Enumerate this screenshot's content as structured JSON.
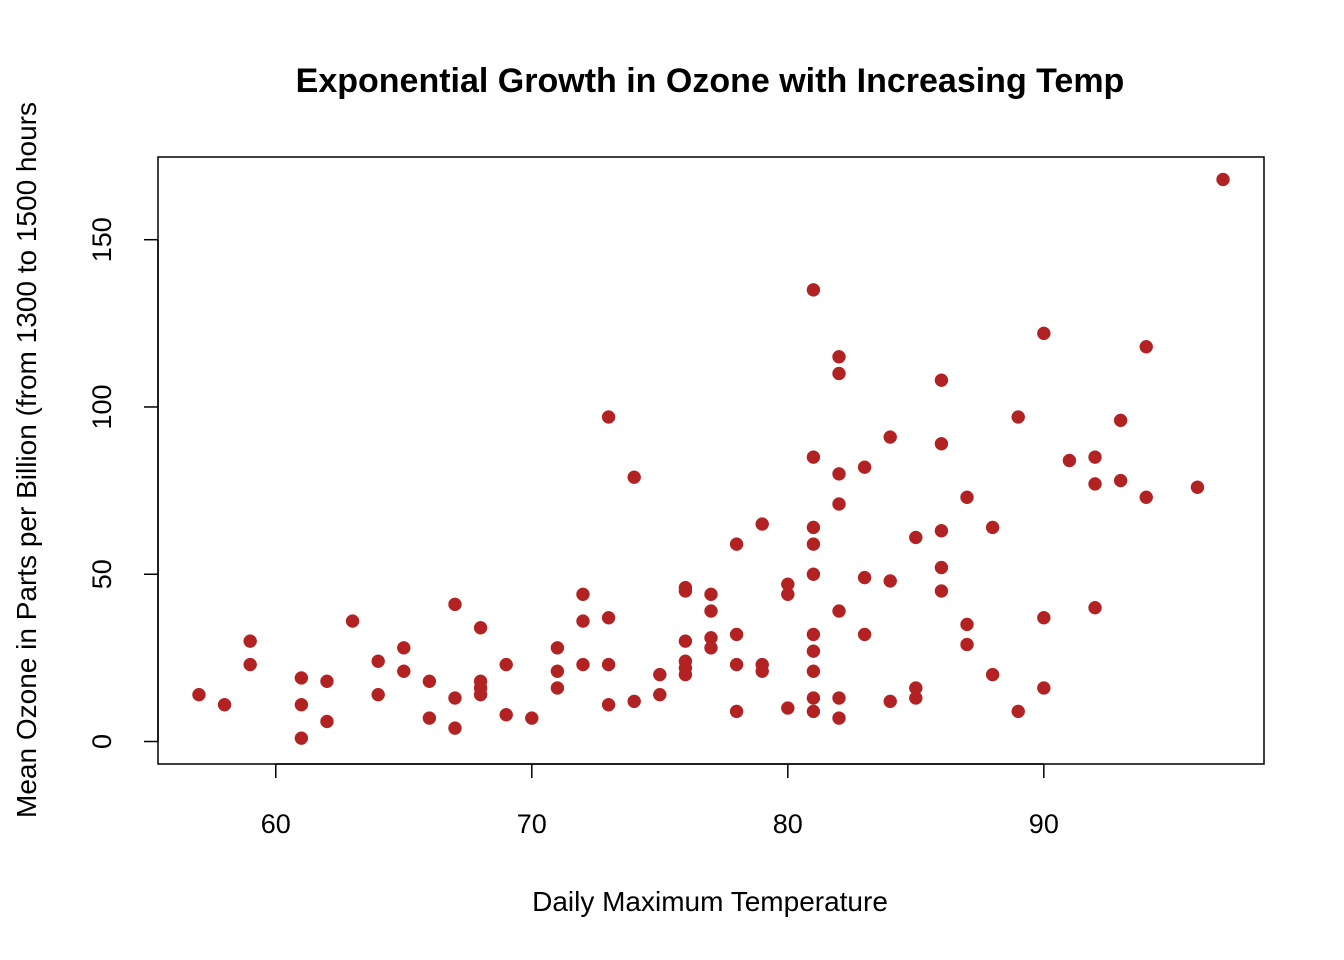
{
  "chart_data": {
    "type": "scatter",
    "title": "Exponential Growth in Ozone with Increasing Temp",
    "xlabel": "Daily Maximum Temperature",
    "ylabel": "Mean Ozone in Parts per Billion (from 1300 to 1500 hours",
    "xlim": [
      55.4,
      98.6
    ],
    "ylim": [
      -6.72,
      174.72
    ],
    "xticks": [
      60,
      70,
      80,
      90
    ],
    "yticks": [
      0,
      50,
      100,
      150
    ],
    "grid": false,
    "legend": "none",
    "point_color": "#B22222",
    "x": [
      67,
      72,
      74,
      62,
      65,
      59,
      61,
      69,
      66,
      68,
      58,
      64,
      66,
      57,
      68,
      62,
      59,
      73,
      61,
      61,
      67,
      81,
      79,
      76,
      82,
      90,
      87,
      82,
      77,
      72,
      65,
      73,
      76,
      84,
      85,
      81,
      83,
      83,
      88,
      92,
      92,
      89,
      73,
      81,
      80,
      81,
      82,
      84,
      87,
      85,
      74,
      86,
      85,
      82,
      86,
      88,
      86,
      83,
      81,
      81,
      81,
      82,
      89,
      90,
      90,
      86,
      82,
      80,
      77,
      79,
      76,
      78,
      78,
      77,
      72,
      79,
      81,
      86,
      97,
      94,
      96,
      94,
      91,
      92,
      93,
      93,
      87,
      84,
      80,
      78,
      75,
      73,
      81,
      76,
      77,
      71,
      71,
      78,
      67,
      76,
      68,
      82,
      64,
      71,
      81,
      69,
      63,
      70,
      75,
      76,
      68
    ],
    "y": [
      41,
      36,
      12,
      18,
      28,
      23,
      19,
      8,
      7,
      16,
      11,
      14,
      18,
      14,
      34,
      6,
      30,
      11,
      1,
      11,
      4,
      32,
      23,
      45,
      115,
      37,
      29,
      71,
      39,
      23,
      21,
      37,
      20,
      12,
      13,
      135,
      49,
      32,
      64,
      40,
      77,
      97,
      97,
      85,
      10,
      27,
      7,
      48,
      35,
      61,
      79,
      63,
      16,
      80,
      108,
      20,
      52,
      82,
      50,
      64,
      59,
      39,
      9,
      16,
      122,
      89,
      110,
      44,
      28,
      65,
      22,
      59,
      23,
      31,
      44,
      21,
      9,
      45,
      168,
      73,
      76,
      118,
      84,
      85,
      96,
      78,
      73,
      91,
      47,
      32,
      20,
      23,
      21,
      24,
      44,
      21,
      28,
      9,
      13,
      46,
      18,
      13,
      24,
      16,
      13,
      23,
      36,
      7,
      14,
      30,
      14
    ]
  }
}
